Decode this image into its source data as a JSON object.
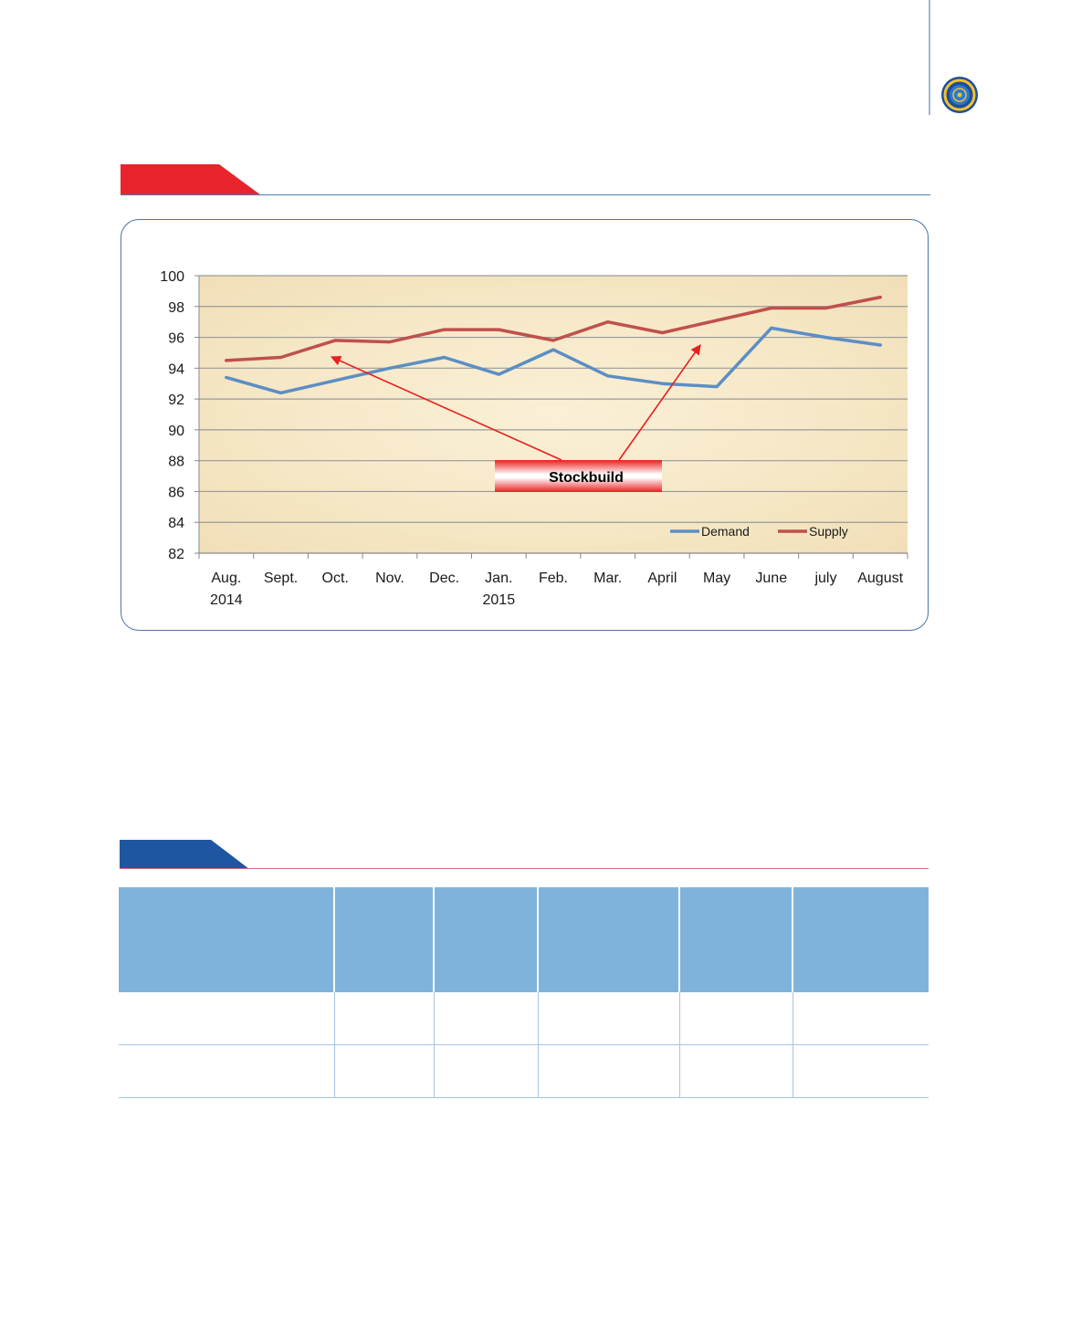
{
  "chart_data": {
    "type": "line",
    "categories": [
      [
        "Aug.",
        "2014"
      ],
      [
        "Sept."
      ],
      [
        "Oct."
      ],
      [
        "Nov."
      ],
      [
        "Dec."
      ],
      [
        "Jan.",
        "2015"
      ],
      [
        "Feb."
      ],
      [
        "Mar."
      ],
      [
        "April"
      ],
      [
        "May"
      ],
      [
        "June"
      ],
      [
        "july"
      ],
      [
        "August"
      ]
    ],
    "series": [
      {
        "name": "Demand",
        "color": "#5b8ec4",
        "values": [
          93.4,
          92.4,
          93.2,
          94.0,
          94.7,
          93.6,
          95.2,
          93.5,
          93.0,
          92.8,
          96.6,
          96.0,
          95.5
        ]
      },
      {
        "name": "Supply",
        "color": "#c0504d",
        "values": [
          94.5,
          94.7,
          95.8,
          95.7,
          96.5,
          96.5,
          95.8,
          97.0,
          96.3,
          97.1,
          97.9,
          97.9,
          98.6
        ]
      }
    ],
    "ylim": [
      82,
      100
    ],
    "yticks": [
      82,
      84,
      86,
      88,
      90,
      92,
      94,
      96,
      98,
      100
    ],
    "grid": true,
    "legend_position": "bottom-right",
    "annotation": {
      "label": "Stockbuild",
      "color": "#e8201e"
    }
  },
  "table": {
    "columns": 6,
    "rows": 2
  }
}
